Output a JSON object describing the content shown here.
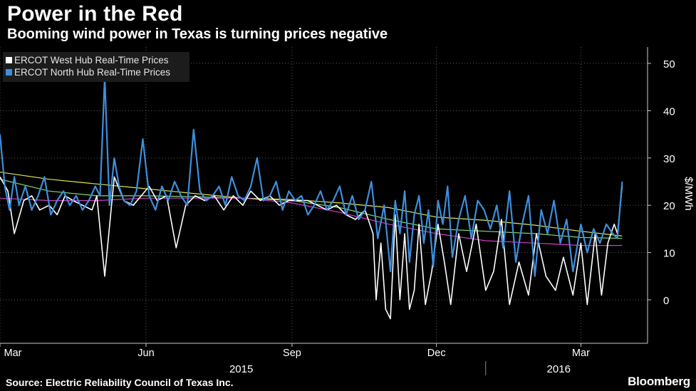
{
  "title": "Power in the Red",
  "subtitle": "Booming wind power in Texas is turning prices negative",
  "source": "Source: Electric Reliability Council of Texas Inc.",
  "brand": "Bloomberg",
  "chart_data": {
    "type": "line",
    "title": "Power in the Red",
    "subtitle": "Booming wind power in Texas is turning prices negative",
    "ylabel": "$/MWh",
    "ylim": [
      -5,
      54
    ],
    "yticks": [
      0,
      10,
      20,
      30,
      40,
      50
    ],
    "xlim": [
      "2015-03-01",
      "2016-04-12"
    ],
    "x_tick_labels": [
      {
        "label": "Mar",
        "date": "2015-03-01"
      },
      {
        "label": "Jun",
        "date": "2015-06-01"
      },
      {
        "label": "Sep",
        "date": "2015-09-01"
      },
      {
        "label": "Dec",
        "date": "2015-12-01"
      },
      {
        "label": "Mar",
        "date": "2016-03-01"
      }
    ],
    "year_labels": [
      {
        "label": "2015",
        "date": "2015-07-31"
      },
      {
        "label": "2016",
        "date": "2016-02-16"
      }
    ],
    "grid": true,
    "legend_position": "top-left",
    "colors": {
      "west": "#ffffff",
      "north": "#3d8fdc",
      "ma_yellow": "#e6e64c",
      "ma_green": "#7fdc6e",
      "ma_magenta": "#d23cc8"
    },
    "series": [
      {
        "name": "ERCOT West Hub Real-Time Prices",
        "x": [
          "2015-03-01",
          "2015-03-06",
          "2015-03-10",
          "2015-03-16",
          "2015-03-21",
          "2015-03-26",
          "2015-04-01",
          "2015-04-06",
          "2015-04-11",
          "2015-04-16",
          "2015-04-22",
          "2015-04-28",
          "2015-05-01",
          "2015-05-06",
          "2015-05-12",
          "2015-05-18",
          "2015-05-24",
          "2015-05-29",
          "2015-06-03",
          "2015-06-08",
          "2015-06-14",
          "2015-06-20",
          "2015-06-26",
          "2015-07-02",
          "2015-07-08",
          "2015-07-14",
          "2015-07-20",
          "2015-07-26",
          "2015-08-01",
          "2015-08-06",
          "2015-08-12",
          "2015-08-18",
          "2015-08-24",
          "2015-08-30",
          "2015-09-05",
          "2015-09-11",
          "2015-09-17",
          "2015-09-23",
          "2015-09-29",
          "2015-10-05",
          "2015-10-11",
          "2015-10-17",
          "2015-10-22",
          "2015-10-24",
          "2015-10-27",
          "2015-10-30",
          "2015-11-02",
          "2015-11-05",
          "2015-11-08",
          "2015-11-11",
          "2015-11-14",
          "2015-11-17",
          "2015-11-20",
          "2015-11-24",
          "2015-11-28",
          "2015-12-02",
          "2015-12-06",
          "2015-12-10",
          "2015-12-15",
          "2015-12-20",
          "2015-12-26",
          "2016-01-01",
          "2016-01-06",
          "2016-01-11",
          "2016-01-16",
          "2016-01-22",
          "2016-01-28",
          "2016-02-02",
          "2016-02-08",
          "2016-02-14",
          "2016-02-19",
          "2016-02-25",
          "2016-03-01",
          "2016-03-05",
          "2016-03-10",
          "2016-03-14",
          "2016-03-18",
          "2016-03-22",
          "2016-03-24",
          "2016-03-27"
        ],
        "values": [
          26,
          23,
          14,
          21,
          22,
          19,
          20,
          18,
          22,
          21,
          20,
          19,
          22,
          5,
          26,
          21,
          20,
          22,
          24,
          21,
          22,
          11,
          20,
          22,
          21,
          22,
          19,
          22,
          20,
          23,
          21,
          22,
          20,
          21,
          21,
          21,
          20,
          19,
          20,
          18,
          17,
          19,
          14,
          0,
          12,
          -2,
          -4,
          18,
          0,
          14,
          -2,
          2,
          16,
          -1,
          6,
          16,
          8,
          -1,
          14,
          6,
          16,
          2,
          6,
          17,
          -1,
          8,
          1,
          14,
          5,
          2,
          9,
          1,
          12,
          -1,
          14,
          1,
          12,
          16,
          14,
          24
        ]
      },
      {
        "name": "ERCOT North Hub Real-Time Prices",
        "x": [
          "2015-03-01",
          "2015-03-04",
          "2015-03-07",
          "2015-03-10",
          "2015-03-13",
          "2015-03-17",
          "2015-03-21",
          "2015-03-25",
          "2015-03-29",
          "2015-04-02",
          "2015-04-06",
          "2015-04-10",
          "2015-04-14",
          "2015-04-18",
          "2015-04-22",
          "2015-04-26",
          "2015-04-30",
          "2015-05-03",
          "2015-05-06",
          "2015-05-09",
          "2015-05-12",
          "2015-05-15",
          "2015-05-18",
          "2015-05-22",
          "2015-05-26",
          "2015-05-30",
          "2015-06-03",
          "2015-06-07",
          "2015-06-11",
          "2015-06-15",
          "2015-06-19",
          "2015-06-23",
          "2015-06-27",
          "2015-07-01",
          "2015-07-05",
          "2015-07-09",
          "2015-07-13",
          "2015-07-17",
          "2015-07-21",
          "2015-07-25",
          "2015-07-29",
          "2015-08-02",
          "2015-08-06",
          "2015-08-10",
          "2015-08-14",
          "2015-08-18",
          "2015-08-22",
          "2015-08-26",
          "2015-08-30",
          "2015-09-03",
          "2015-09-07",
          "2015-09-11",
          "2015-09-15",
          "2015-09-19",
          "2015-09-23",
          "2015-09-27",
          "2015-10-01",
          "2015-10-05",
          "2015-10-09",
          "2015-10-13",
          "2015-10-17",
          "2015-10-21",
          "2015-10-25",
          "2015-10-29",
          "2015-11-02",
          "2015-11-05",
          "2015-11-08",
          "2015-11-11",
          "2015-11-14",
          "2015-11-17",
          "2015-11-20",
          "2015-11-23",
          "2015-11-26",
          "2015-11-29",
          "2015-12-02",
          "2015-12-05",
          "2015-12-08",
          "2015-12-11",
          "2015-12-15",
          "2015-12-19",
          "2015-12-23",
          "2015-12-27",
          "2015-12-31",
          "2016-01-04",
          "2016-01-08",
          "2016-01-12",
          "2016-01-16",
          "2016-01-20",
          "2016-01-24",
          "2016-01-28",
          "2016-02-01",
          "2016-02-05",
          "2016-02-09",
          "2016-02-13",
          "2016-02-17",
          "2016-02-21",
          "2016-02-25",
          "2016-03-01",
          "2016-03-05",
          "2016-03-09",
          "2016-03-13",
          "2016-03-17",
          "2016-03-21",
          "2016-03-24",
          "2016-03-27"
        ],
        "values": [
          35,
          24,
          19,
          26,
          20,
          24,
          19,
          22,
          26,
          18,
          21,
          23,
          20,
          22,
          19,
          21,
          24,
          22,
          47,
          20,
          30,
          24,
          21,
          20,
          23,
          34,
          22,
          19,
          24,
          21,
          25,
          22,
          20,
          36,
          23,
          21,
          22,
          24,
          20,
          26,
          22,
          21,
          24,
          30,
          21,
          22,
          25,
          19,
          23,
          21,
          22,
          18,
          20,
          23,
          19,
          21,
          24,
          18,
          22,
          17,
          19,
          25,
          13,
          20,
          6,
          21,
          14,
          23,
          8,
          18,
          22,
          12,
          19,
          7,
          21,
          16,
          24,
          9,
          17,
          22,
          13,
          21,
          19,
          15,
          20,
          11,
          23,
          8,
          16,
          22,
          5,
          19,
          14,
          21,
          12,
          17,
          6,
          16,
          10,
          15,
          12,
          16,
          14,
          13,
          25
        ]
      }
    ],
    "moving_averages": [
      {
        "color": "ma_yellow",
        "x": [
          "2015-03-01",
          "2015-04-01",
          "2015-05-01",
          "2015-06-01",
          "2015-07-01",
          "2015-08-01",
          "2015-09-01",
          "2015-10-01",
          "2015-11-01",
          "2015-12-01",
          "2016-01-01",
          "2016-02-01",
          "2016-03-01",
          "2016-03-27"
        ],
        "values": [
          27,
          25.5,
          24.5,
          23.5,
          22.5,
          21.5,
          21.2,
          20.5,
          19.5,
          17.5,
          16.8,
          15.8,
          14.5,
          13.5
        ]
      },
      {
        "color": "ma_green",
        "x": [
          "2015-03-01",
          "2015-04-01",
          "2015-05-01",
          "2015-06-01",
          "2015-07-01",
          "2015-08-01",
          "2015-09-01",
          "2015-10-01",
          "2015-11-01",
          "2015-12-01",
          "2016-01-01",
          "2016-02-01",
          "2016-03-01",
          "2016-03-27"
        ],
        "values": [
          25.5,
          23,
          22,
          22,
          21.8,
          21.5,
          21,
          19.5,
          17,
          15,
          14.5,
          14,
          13.2,
          13
        ]
      },
      {
        "color": "ma_magenta",
        "x": [
          "2015-03-01",
          "2015-04-01",
          "2015-05-01",
          "2015-06-01",
          "2015-07-01",
          "2015-08-01",
          "2015-09-01",
          "2015-10-01",
          "2015-11-01",
          "2015-12-01",
          "2016-01-01",
          "2016-02-01",
          "2016-03-01",
          "2016-03-27"
        ],
        "values": [
          21.5,
          21,
          21,
          21.5,
          21.5,
          21.5,
          20.5,
          18.5,
          16,
          14,
          12.5,
          12,
          11.5,
          11.5
        ]
      }
    ]
  }
}
